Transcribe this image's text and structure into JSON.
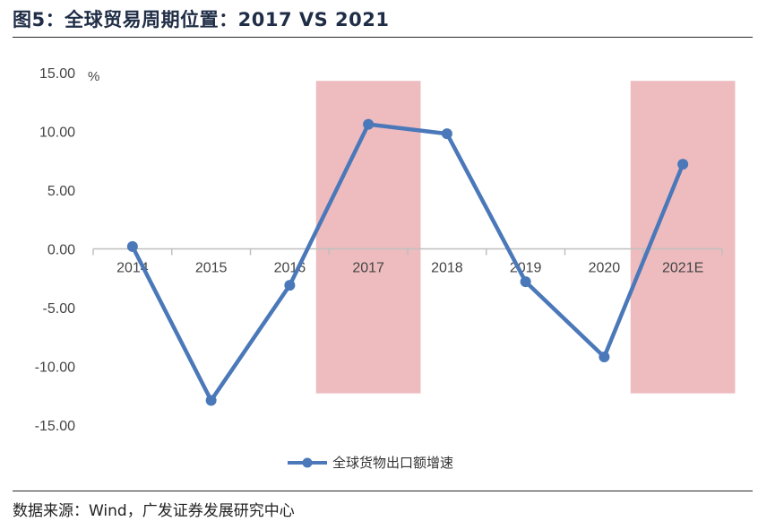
{
  "figure": {
    "title": "图5：全球贸易周期位置：2017 VS 2021",
    "source": "数据来源：Wind，广发证券发展研究中心"
  },
  "chart_data": {
    "type": "line",
    "title": "图5：全球贸易周期位置：2017 VS 2021",
    "ylabel": "%",
    "xlabel": "",
    "categories": [
      "2014",
      "2015",
      "2016",
      "2017",
      "2018",
      "2019",
      "2020",
      "2021E"
    ],
    "series": [
      {
        "name": "全球货物出口额增速",
        "values": [
          0.2,
          -12.9,
          -3.1,
          10.6,
          9.8,
          -2.8,
          -9.2,
          7.2
        ]
      }
    ],
    "y_ticks": [
      "15.00",
      "10.00",
      "5.00",
      "0.00",
      "-5.00",
      "-10.00",
      "-15.00"
    ],
    "ylim": [
      -15,
      15
    ],
    "highlighted_categories": [
      "2017",
      "2021E"
    ],
    "highlight_range": [
      -12.3,
      14.3
    ],
    "legend_position": "bottom-center",
    "grid": false,
    "colors": {
      "line": "#4a78b9",
      "highlight": "#e8a6a9",
      "axis": "#bfbfbf"
    }
  }
}
